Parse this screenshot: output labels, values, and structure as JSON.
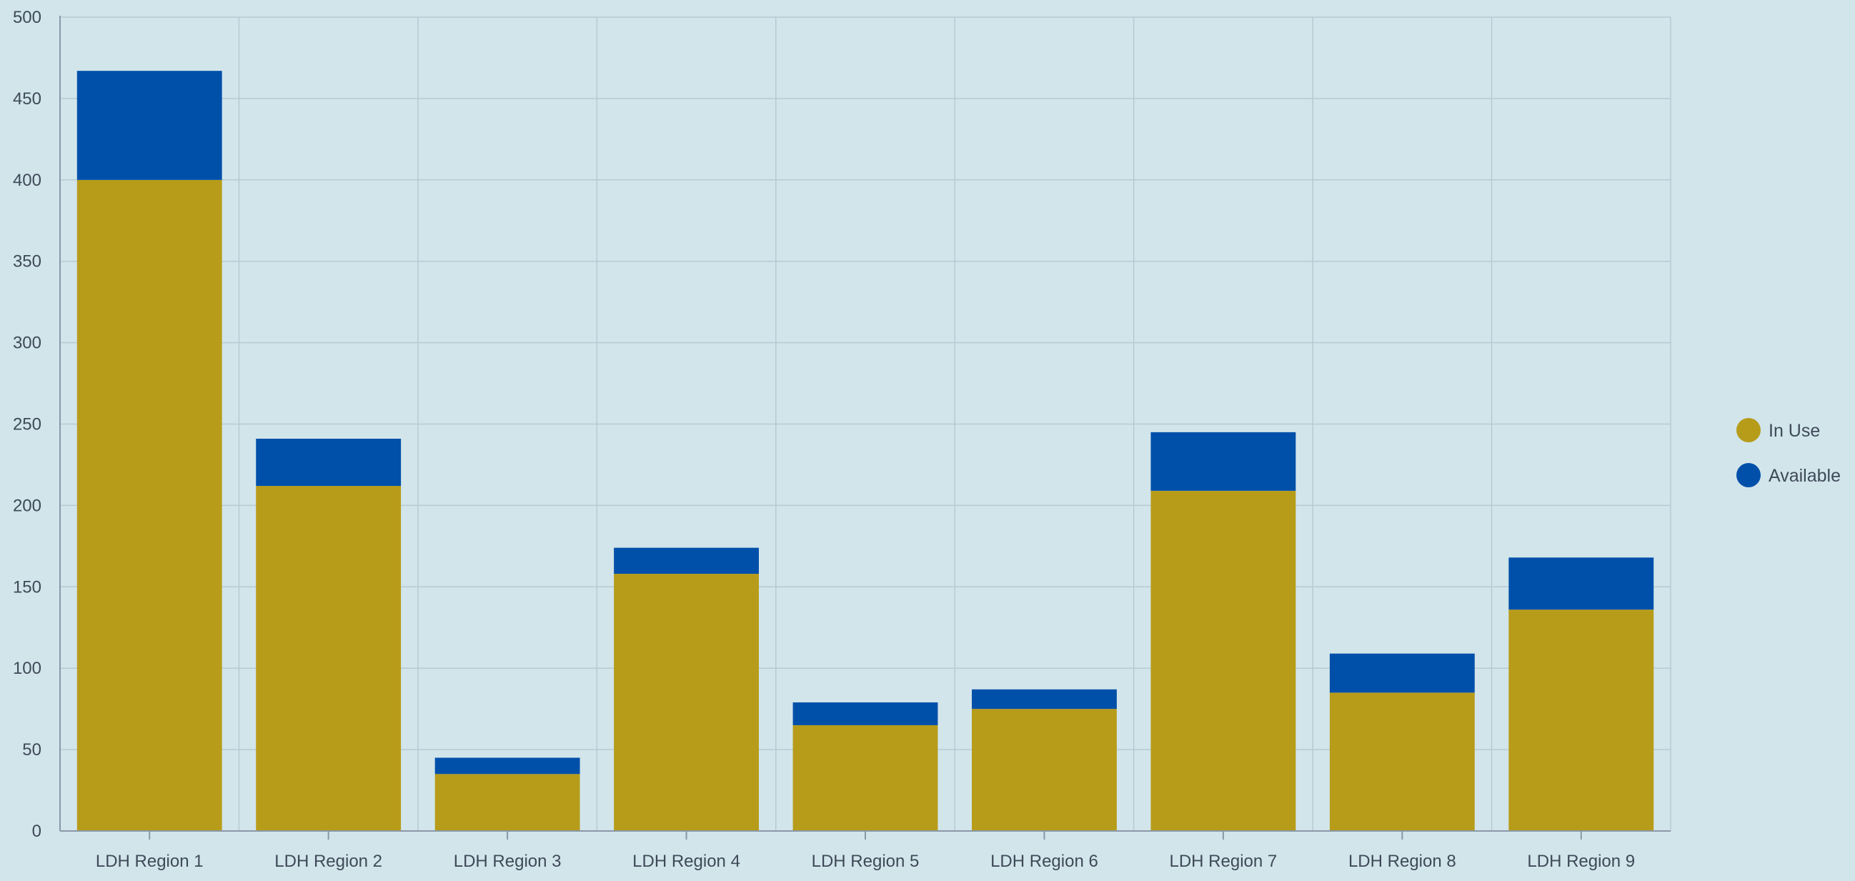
{
  "chart_data": {
    "type": "bar",
    "stacked": true,
    "categories": [
      "LDH Region 1",
      "LDH Region 2",
      "LDH Region 3",
      "LDH Region 4",
      "LDH Region 5",
      "LDH Region 6",
      "LDH Region 7",
      "LDH Region 8",
      "LDH Region 9"
    ],
    "series": [
      {
        "name": "In Use",
        "color": "#b79c1a",
        "values": [
          400,
          212,
          35,
          158,
          65,
          75,
          209,
          85,
          136
        ]
      },
      {
        "name": "Available",
        "color": "#0050aa",
        "values": [
          67,
          29,
          10,
          16,
          14,
          12,
          36,
          24,
          32
        ]
      }
    ],
    "title": "",
    "xlabel": "",
    "ylabel": "",
    "ylim": [
      0,
      500
    ],
    "yticks": [
      0,
      50,
      100,
      150,
      200,
      250,
      300,
      350,
      400,
      450,
      500
    ],
    "grid": true,
    "legend_position": "right"
  }
}
